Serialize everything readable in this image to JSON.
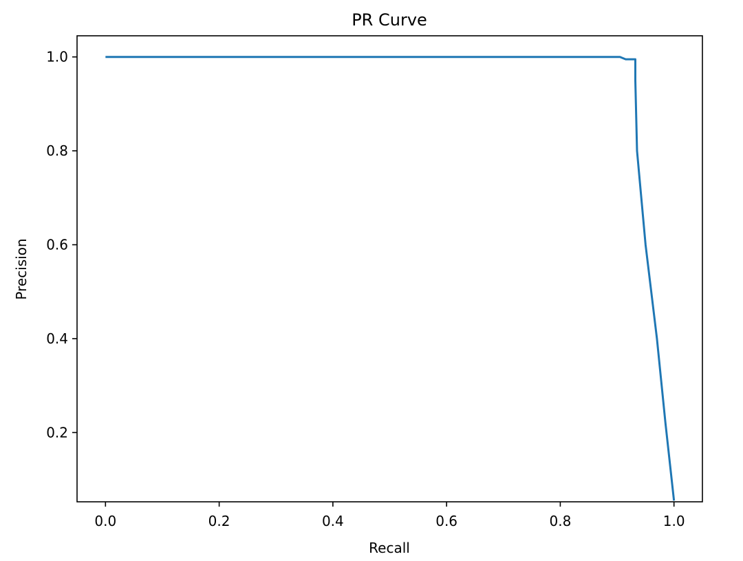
{
  "chart_data": {
    "type": "line",
    "title": "PR Curve",
    "xlabel": "Recall",
    "ylabel": "Precision",
    "xlim": [
      -0.05,
      1.05
    ],
    "ylim": [
      0.0525,
      1.045
    ],
    "xticks": [
      0.0,
      0.2,
      0.4,
      0.6,
      0.8,
      1.0
    ],
    "xtick_labels": [
      "0.0",
      "0.2",
      "0.4",
      "0.6",
      "0.8",
      "1.0"
    ],
    "yticks": [
      0.2,
      0.4,
      0.6,
      0.8,
      1.0
    ],
    "ytick_labels": [
      "0.2",
      "0.4",
      "0.6",
      "0.8",
      "1.0"
    ],
    "grid": false,
    "legend": "none",
    "series": [
      {
        "color": "#1f77b4",
        "x": [
          0.0,
          0.1,
          0.2,
          0.3,
          0.4,
          0.5,
          0.6,
          0.7,
          0.8,
          0.905,
          0.915,
          0.932,
          0.932,
          0.933,
          0.935,
          0.95,
          0.97,
          0.985,
          1.0
        ],
        "y": [
          1.0,
          1.0,
          1.0,
          1.0,
          1.0,
          1.0,
          1.0,
          1.0,
          1.0,
          1.0,
          0.995,
          0.995,
          0.95,
          0.9,
          0.8,
          0.6,
          0.4,
          0.22,
          0.055
        ]
      }
    ]
  }
}
